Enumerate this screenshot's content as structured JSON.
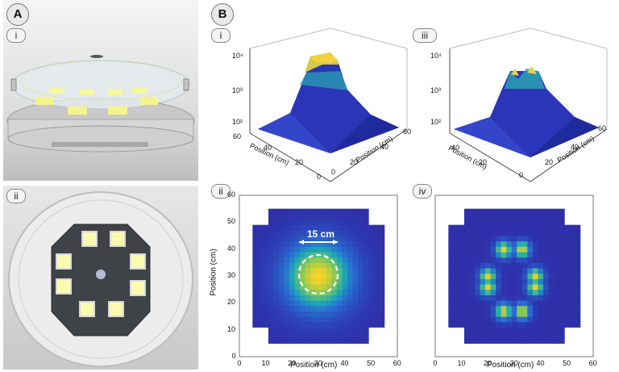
{
  "panels": {
    "A": {
      "label": "A",
      "sub_i": "i",
      "sub_ii": "ii"
    },
    "B": {
      "label": "B",
      "sub_i": "i",
      "sub_ii": "ii",
      "sub_iii": "iii",
      "sub_iv": "iv"
    }
  },
  "surface_plots": {
    "z_ticks": [
      "10⁴",
      "10³",
      "10²"
    ],
    "xy_ticks": [
      "60",
      "40",
      "20",
      "0"
    ],
    "axis_label": "Position (cm)"
  },
  "chart_data": [
    {
      "type": "heatmap",
      "panel": "B-ii",
      "xlabel": "Position (cm)",
      "ylabel": "Position (cm)",
      "xlim": [
        0,
        60
      ],
      "ylim": [
        0,
        60
      ],
      "x_ticks": [
        "0",
        "10",
        "20",
        "30",
        "40",
        "50",
        "60"
      ],
      "y_ticks": [
        "0",
        "10",
        "20",
        "30",
        "40",
        "50",
        "60"
      ],
      "annotation": "15 cm",
      "pattern": "single-central-peak",
      "peak_center": [
        30,
        30
      ]
    },
    {
      "type": "heatmap",
      "panel": "B-iv",
      "xlabel": "Position (cm)",
      "xlim": [
        0,
        60
      ],
      "ylim": [
        0,
        60
      ],
      "x_ticks": [
        "0",
        "10",
        "20",
        "30",
        "40",
        "50",
        "60"
      ],
      "pattern": "ring-of-eight-peaks",
      "peak_centers": [
        [
          26,
          40
        ],
        [
          33,
          40
        ],
        [
          20,
          30
        ],
        [
          38,
          30
        ],
        [
          20,
          26
        ],
        [
          38,
          26
        ],
        [
          26,
          17
        ],
        [
          33,
          17
        ]
      ]
    }
  ]
}
